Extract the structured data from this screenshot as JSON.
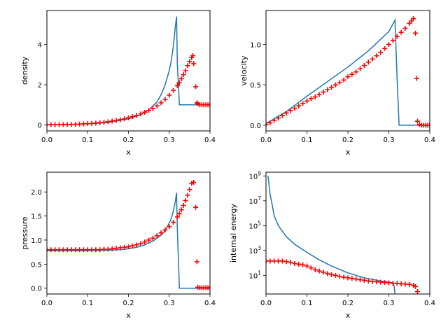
{
  "colors": {
    "line": "#1f77b4",
    "marker": "#ff0000"
  },
  "chart_data": [
    {
      "type": "line",
      "xlabel": "x",
      "ylabel": "density",
      "xlim": [
        0,
        0.4
      ],
      "ylim": [
        -0.3,
        5.7
      ],
      "xticks": [
        0,
        0.1,
        0.2,
        0.3,
        0.4
      ],
      "xtick_labels": [
        "0.0",
        "0.1",
        "0.2",
        "0.3",
        "0.4"
      ],
      "yticks": [
        0,
        2,
        4
      ],
      "ytick_labels": [
        "0",
        "2",
        "4"
      ],
      "line": {
        "x": [
          0,
          0.05,
          0.1,
          0.15,
          0.2,
          0.23,
          0.25,
          0.27,
          0.28,
          0.29,
          0.3,
          0.305,
          0.31,
          0.315,
          0.318,
          0.32,
          0.325,
          0.35,
          0.4
        ],
        "y": [
          0.01,
          0.02,
          0.05,
          0.12,
          0.3,
          0.5,
          0.75,
          1.15,
          1.5,
          2.0,
          2.7,
          3.2,
          3.9,
          4.9,
          5.4,
          3.0,
          1.0,
          1.0,
          1.0
        ]
      },
      "markers": {
        "x": [
          0,
          0.01,
          0.02,
          0.03,
          0.04,
          0.05,
          0.06,
          0.07,
          0.08,
          0.09,
          0.1,
          0.11,
          0.12,
          0.13,
          0.14,
          0.15,
          0.16,
          0.17,
          0.18,
          0.19,
          0.2,
          0.21,
          0.22,
          0.23,
          0.24,
          0.25,
          0.26,
          0.27,
          0.28,
          0.29,
          0.3,
          0.31,
          0.32,
          0.325,
          0.33,
          0.335,
          0.34,
          0.345,
          0.35,
          0.355,
          0.358,
          0.36,
          0.365,
          0.368,
          0.37,
          0.375,
          0.38,
          0.385,
          0.39,
          0.395,
          0.4
        ],
        "y": [
          0.01,
          0.01,
          0.01,
          0.01,
          0.02,
          0.02,
          0.02,
          0.03,
          0.04,
          0.05,
          0.06,
          0.07,
          0.09,
          0.11,
          0.13,
          0.16,
          0.19,
          0.22,
          0.26,
          0.3,
          0.35,
          0.41,
          0.47,
          0.55,
          0.63,
          0.72,
          0.82,
          0.95,
          1.1,
          1.27,
          1.48,
          1.72,
          1.95,
          2.1,
          2.3,
          2.5,
          2.7,
          2.95,
          3.15,
          3.35,
          3.45,
          3.05,
          1.9,
          1.1,
          1.05,
          1.0,
          1.0,
          1.0,
          1.0,
          1.0,
          1.0
        ]
      }
    },
    {
      "type": "line",
      "xlabel": "x",
      "ylabel": "velocity",
      "xlim": [
        0,
        0.4
      ],
      "ylim": [
        -0.07,
        1.42
      ],
      "xticks": [
        0,
        0.1,
        0.2,
        0.3,
        0.4
      ],
      "xtick_labels": [
        "0.0",
        "0.1",
        "0.2",
        "0.3",
        "0.4"
      ],
      "yticks": [
        0,
        0.5,
        1.0
      ],
      "ytick_labels": [
        "0.0",
        "0.5",
        "1.0"
      ],
      "line": {
        "x": [
          0,
          0.05,
          0.1,
          0.15,
          0.2,
          0.25,
          0.3,
          0.315,
          0.32,
          0.325,
          0.4
        ],
        "y": [
          0.02,
          0.17,
          0.36,
          0.54,
          0.72,
          0.92,
          1.16,
          1.3,
          0.6,
          0.0,
          0.0
        ]
      },
      "markers": {
        "x": [
          0,
          0.01,
          0.02,
          0.03,
          0.04,
          0.05,
          0.06,
          0.07,
          0.08,
          0.09,
          0.1,
          0.11,
          0.12,
          0.13,
          0.14,
          0.15,
          0.16,
          0.17,
          0.18,
          0.19,
          0.2,
          0.21,
          0.22,
          0.23,
          0.24,
          0.25,
          0.26,
          0.27,
          0.28,
          0.29,
          0.3,
          0.31,
          0.32,
          0.33,
          0.34,
          0.35,
          0.355,
          0.36,
          0.365,
          0.368,
          0.37,
          0.375,
          0.38,
          0.385,
          0.39,
          0.395,
          0.4
        ],
        "y": [
          0.01,
          0.03,
          0.06,
          0.09,
          0.12,
          0.15,
          0.18,
          0.21,
          0.24,
          0.27,
          0.3,
          0.33,
          0.35,
          0.38,
          0.41,
          0.44,
          0.47,
          0.5,
          0.53,
          0.56,
          0.6,
          0.63,
          0.66,
          0.7,
          0.74,
          0.78,
          0.82,
          0.86,
          0.9,
          0.95,
          1.0,
          1.05,
          1.1,
          1.15,
          1.2,
          1.26,
          1.29,
          1.32,
          1.14,
          0.58,
          0.05,
          0.01,
          0.0,
          0.0,
          0.0,
          0.0,
          0.0
        ]
      }
    },
    {
      "type": "line",
      "xlabel": "x",
      "ylabel": "pressure",
      "xlim": [
        0,
        0.4
      ],
      "ylim": [
        -0.12,
        2.41
      ],
      "xticks": [
        0,
        0.1,
        0.2,
        0.3,
        0.4
      ],
      "xtick_labels": [
        "0.0",
        "0.1",
        "0.2",
        "0.3",
        "0.4"
      ],
      "yticks": [
        0,
        0.5,
        1.0,
        1.5,
        2.0
      ],
      "ytick_labels": [
        "0.0",
        "0.5",
        "1.0",
        "1.5",
        "2.0"
      ],
      "line": {
        "x": [
          0,
          0.05,
          0.1,
          0.15,
          0.18,
          0.2,
          0.22,
          0.24,
          0.26,
          0.28,
          0.29,
          0.3,
          0.305,
          0.31,
          0.315,
          0.318,
          0.32,
          0.325,
          0.4
        ],
        "y": [
          0.78,
          0.78,
          0.78,
          0.79,
          0.8,
          0.82,
          0.85,
          0.9,
          0.98,
          1.1,
          1.2,
          1.35,
          1.45,
          1.6,
          1.8,
          1.98,
          1.2,
          0.0,
          0.0
        ]
      },
      "markers": {
        "x": [
          0,
          0.01,
          0.02,
          0.03,
          0.04,
          0.05,
          0.06,
          0.07,
          0.08,
          0.09,
          0.1,
          0.11,
          0.12,
          0.13,
          0.14,
          0.15,
          0.16,
          0.17,
          0.18,
          0.19,
          0.2,
          0.21,
          0.22,
          0.23,
          0.24,
          0.25,
          0.26,
          0.27,
          0.28,
          0.29,
          0.3,
          0.31,
          0.32,
          0.325,
          0.33,
          0.335,
          0.34,
          0.345,
          0.35,
          0.355,
          0.36,
          0.365,
          0.368,
          0.37,
          0.375,
          0.38,
          0.385,
          0.39,
          0.395,
          0.4
        ],
        "y": [
          0.8,
          0.8,
          0.8,
          0.8,
          0.8,
          0.8,
          0.8,
          0.8,
          0.8,
          0.8,
          0.8,
          0.8,
          0.8,
          0.8,
          0.81,
          0.81,
          0.82,
          0.83,
          0.84,
          0.85,
          0.86,
          0.88,
          0.9,
          0.93,
          0.96,
          1.0,
          1.04,
          1.09,
          1.15,
          1.21,
          1.28,
          1.37,
          1.48,
          1.55,
          1.63,
          1.72,
          1.82,
          1.93,
          2.05,
          2.18,
          2.2,
          1.68,
          0.55,
          0.02,
          0.01,
          0.01,
          0.01,
          0.01,
          0.01,
          0.01
        ]
      }
    },
    {
      "type": "line",
      "xlabel": "x",
      "ylabel": "internal energy",
      "scale": "log",
      "xlim": [
        0,
        0.4
      ],
      "ylim_log10": [
        -0.5,
        9.3
      ],
      "xticks": [
        0,
        0.1,
        0.2,
        0.3,
        0.4
      ],
      "xtick_labels": [
        "0.0",
        "0.1",
        "0.2",
        "0.3",
        "0.4"
      ],
      "yticks_log10": [
        1,
        3,
        5,
        7,
        9
      ],
      "ytick_labels": [
        "1",
        "3",
        "5",
        "7",
        "9"
      ],
      "line": {
        "x": [
          0.005,
          0.01,
          0.015,
          0.02,
          0.03,
          0.05,
          0.07,
          0.1,
          0.13,
          0.16,
          0.2,
          0.24,
          0.28,
          0.3,
          0.31,
          0.313,
          0.315
        ],
        "y_log10": [
          9.0,
          7.5,
          6.7,
          5.8,
          5.0,
          4.1,
          3.5,
          2.85,
          2.25,
          1.75,
          1.2,
          0.8,
          0.55,
          0.45,
          0.4,
          0.1,
          -0.5
        ]
      },
      "markers": {
        "x": [
          0,
          0.01,
          0.02,
          0.03,
          0.04,
          0.05,
          0.06,
          0.07,
          0.08,
          0.09,
          0.1,
          0.11,
          0.12,
          0.13,
          0.14,
          0.15,
          0.16,
          0.17,
          0.18,
          0.19,
          0.2,
          0.21,
          0.22,
          0.23,
          0.24,
          0.25,
          0.26,
          0.27,
          0.28,
          0.29,
          0.3,
          0.31,
          0.32,
          0.33,
          0.34,
          0.35,
          0.36,
          0.365,
          0.37
        ],
        "y_log10": [
          2.15,
          2.15,
          2.15,
          2.15,
          2.15,
          2.1,
          2.05,
          1.95,
          1.9,
          1.85,
          1.75,
          1.6,
          1.45,
          1.35,
          1.25,
          1.15,
          1.05,
          1.0,
          0.9,
          0.85,
          0.8,
          0.75,
          0.7,
          0.65,
          0.6,
          0.55,
          0.5,
          0.48,
          0.45,
          0.42,
          0.4,
          0.37,
          0.35,
          0.32,
          0.3,
          0.27,
          0.2,
          0.1,
          -0.3
        ]
      }
    }
  ]
}
